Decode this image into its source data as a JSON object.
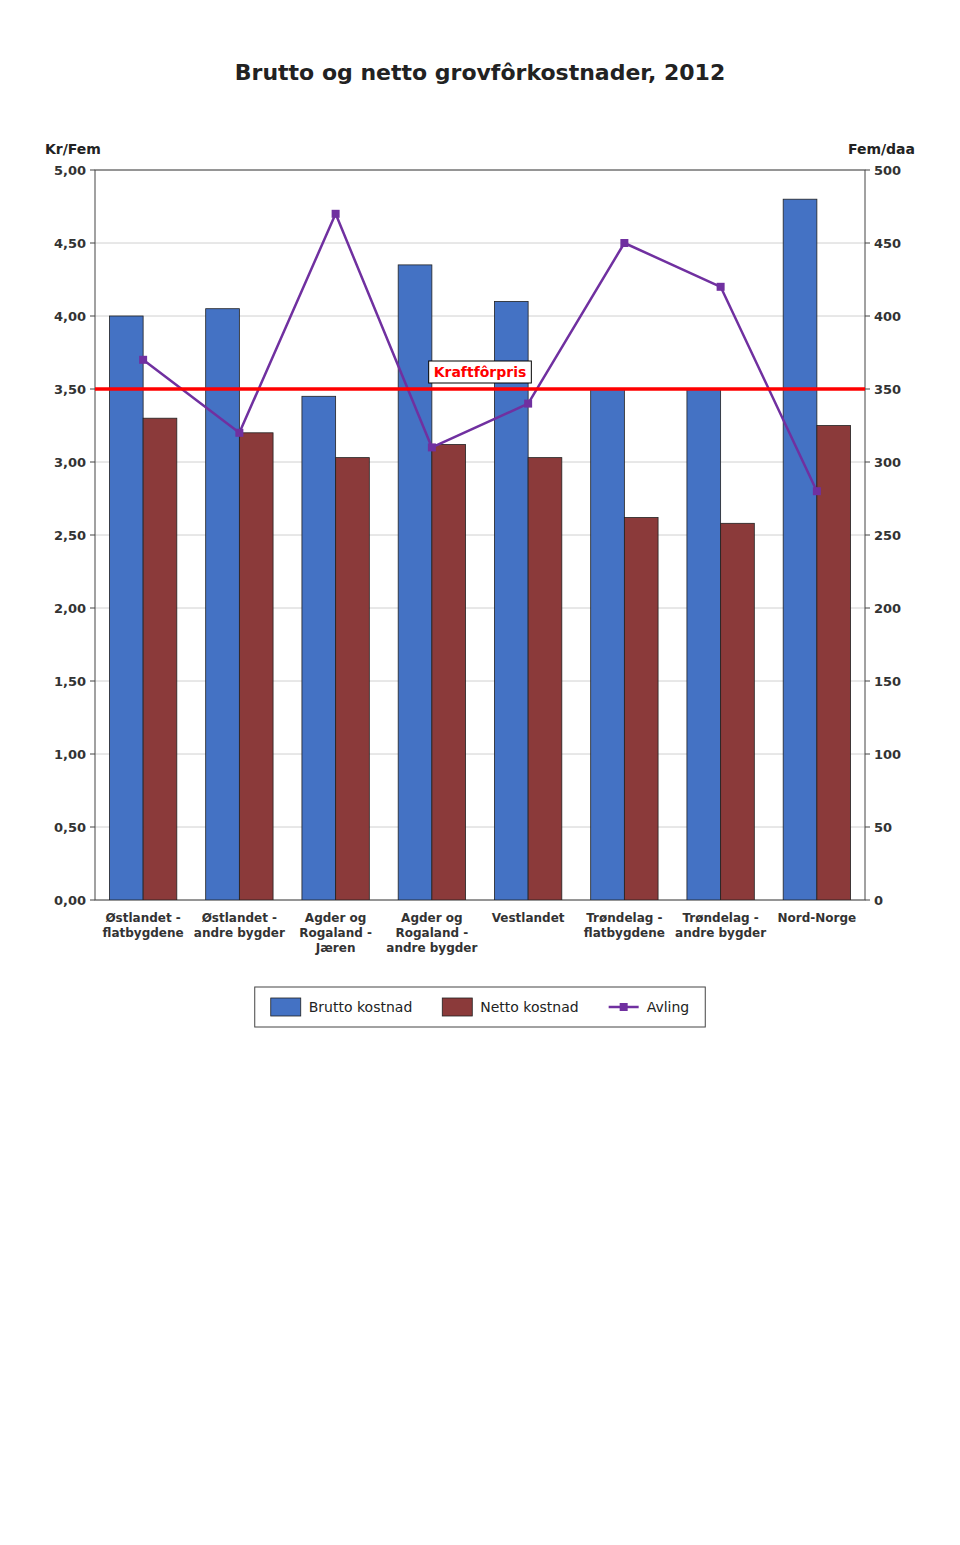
{
  "chart_data": {
    "type": "bar",
    "title": "Brutto og netto grovfôrkostnader, 2012",
    "y_label": "Kr/Fem",
    "y2_label": "Fem/daa",
    "categories": [
      "Østlandet -\nflatbygdene",
      "Østlandet -\nandre bygder",
      "Agder og\nRogaland -\nJæren",
      "Agder og\nRogaland -\nandre bygder",
      "Vestlandet",
      "Trøndelag -\nflatbygdene",
      "Trøndelag -\nandre bygder",
      "Nord-Norge"
    ],
    "series": [
      {
        "name": "Brutto kostnad",
        "type": "bar",
        "color": "#4472C4",
        "values": [
          4.0,
          4.05,
          3.45,
          4.35,
          4.1,
          3.5,
          3.5,
          4.8
        ]
      },
      {
        "name": "Netto kostnad",
        "type": "bar",
        "color": "#8B3A3A",
        "values": [
          3.3,
          3.2,
          3.03,
          3.12,
          3.03,
          2.62,
          2.58,
          3.25
        ]
      },
      {
        "name": "Avling",
        "type": "line",
        "axis": "y2",
        "color": "#7030A0",
        "marker": "square",
        "line_style": "solid",
        "values": [
          370,
          320,
          470,
          310,
          340,
          450,
          420,
          280
        ]
      }
    ],
    "annotations": [
      {
        "text": "Kraftfôrpris",
        "value": 3.5,
        "color": "#FF0000"
      }
    ],
    "ylim": [
      0,
      5.0
    ],
    "yticks": [
      {
        "value": 0.0,
        "label": "0,00"
      },
      {
        "value": 0.5,
        "label": "0,50"
      },
      {
        "value": 1.0,
        "label": "1,00"
      },
      {
        "value": 1.5,
        "label": "1,50"
      },
      {
        "value": 2.0,
        "label": "2,00"
      },
      {
        "value": 2.5,
        "label": "2,50"
      },
      {
        "value": 3.0,
        "label": "3,00"
      },
      {
        "value": 3.5,
        "label": "3,50"
      },
      {
        "value": 4.0,
        "label": "4,00"
      },
      {
        "value": 4.5,
        "label": "4,50"
      },
      {
        "value": 5.0,
        "label": "5,00"
      }
    ],
    "y2lim": [
      0,
      500
    ],
    "y2ticks": [
      0,
      50,
      100,
      150,
      200,
      250,
      300,
      350,
      400,
      450,
      500
    ],
    "grid": true,
    "legend": "bottom"
  }
}
